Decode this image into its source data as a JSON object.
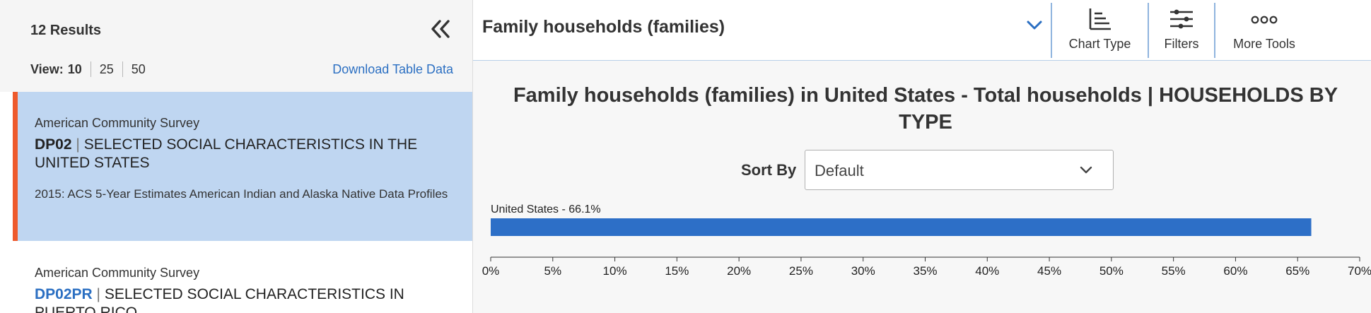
{
  "left_panel": {
    "results_count": "12 Results",
    "collapse_icon": "double-chevron-left-icon",
    "view_label": "View:",
    "view_options": [
      "10",
      "25",
      "50"
    ],
    "view_selected": "10",
    "download_label": "Download Table Data",
    "results": [
      {
        "survey": "American Community Survey",
        "code": "DP02",
        "separator": "|",
        "title": "SELECTED SOCIAL CHARACTERISTICS IN THE UNITED STATES",
        "subtitle": "2015: ACS 5-Year Estimates American Indian and Alaska Native Data Profiles",
        "selected": true
      },
      {
        "survey": "American Community Survey",
        "code": "DP02PR",
        "separator": "|",
        "title": "SELECTED SOCIAL CHARACTERISTICS IN PUERTO RICO",
        "selected": false
      }
    ]
  },
  "toolbar": {
    "topic_selected": "Family households (families)",
    "chart_type_label": "Chart Type",
    "filters_label": "Filters",
    "more_tools_label": "More Tools",
    "icons": [
      "chevron-down-icon",
      "bar-chart-icon",
      "sliders-icon",
      "more-icon"
    ]
  },
  "chart": {
    "title": "Family households (families) in United States - Total households | HOUSEHOLDS BY TYPE",
    "sort_label": "Sort By",
    "sort_value": "Default"
  },
  "colors": {
    "accent": "#2b6fc2",
    "bar": "#2d6fc7",
    "selected_card": "#bfd6f1",
    "selected_marker": "#ee5a2c"
  },
  "chart_data": {
    "type": "bar",
    "orientation": "horizontal",
    "categories": [
      "United States"
    ],
    "values": [
      66.1
    ],
    "data_labels": [
      "United States - 66.1%"
    ],
    "xlim": [
      0,
      70
    ],
    "x_ticks": [
      "0%",
      "5%",
      "10%",
      "15%",
      "20%",
      "25%",
      "30%",
      "35%",
      "40%",
      "45%",
      "50%",
      "55%",
      "60%",
      "65%",
      "70%"
    ],
    "grid": false
  }
}
